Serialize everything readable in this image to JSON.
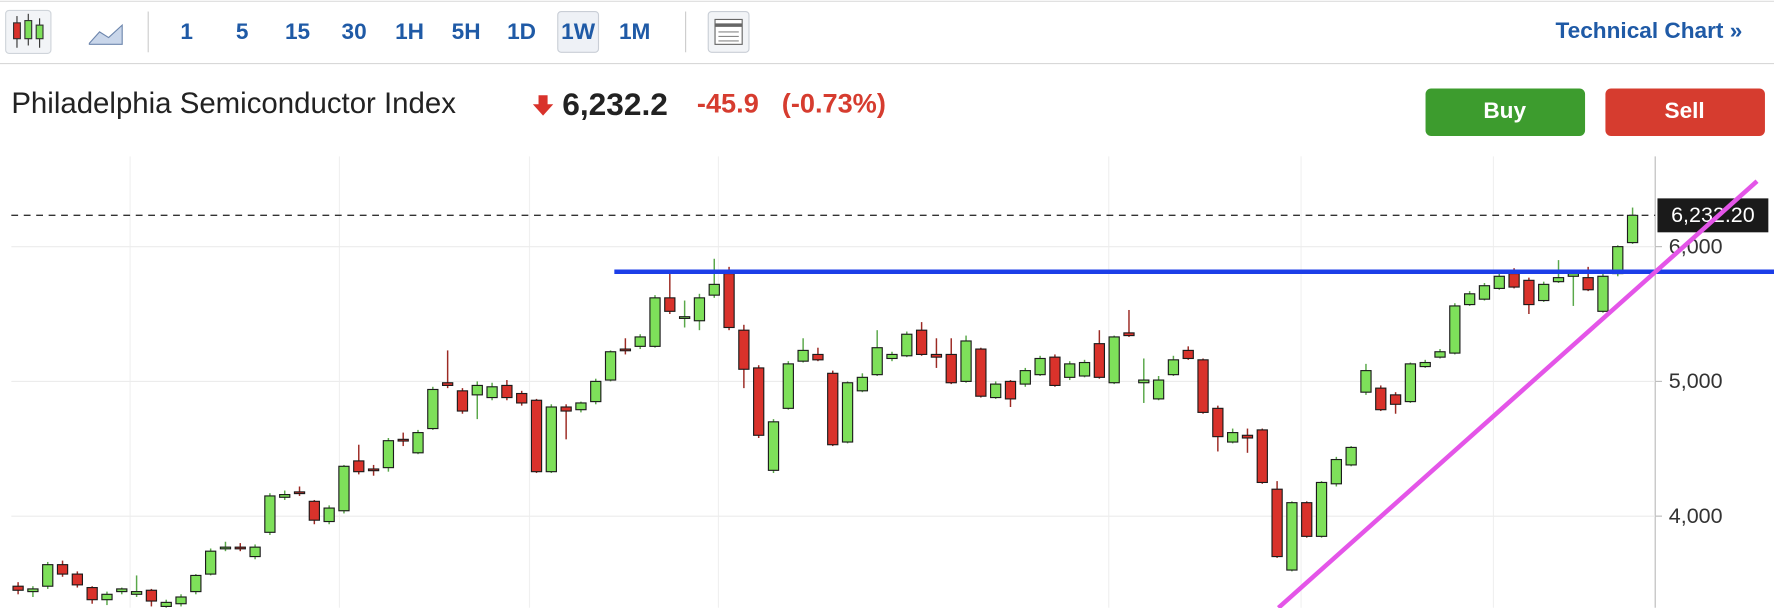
{
  "toolbar": {
    "intervals": [
      "1",
      "5",
      "15",
      "30",
      "1H",
      "5H",
      "1D",
      "1W",
      "1M"
    ],
    "selected": "1W",
    "link": "Technical Chart »"
  },
  "quote": {
    "name": "Philadelphia Semiconductor Index",
    "price": "6,232.2",
    "change": "-45.9",
    "change_percent": "(-0.73%)"
  },
  "buttons": [
    "Buy",
    "Sell"
  ],
  "chart_data": {
    "type": "candlestick",
    "open": [
      3480,
      3440,
      3480,
      3640,
      3570,
      3470,
      3380,
      3440,
      3420,
      3450,
      3330,
      3350,
      3440,
      3570,
      3760,
      3770,
      3700,
      3880,
      4140,
      4180,
      4110,
      3960,
      4040,
      4410,
      4350,
      4360,
      4570,
      4470,
      4650,
      4990,
      4930,
      4900,
      4880,
      4970,
      4910,
      4860,
      4330,
      4810,
      4790,
      4850,
      5010,
      5240,
      5260,
      5260,
      5620,
      5480,
      5450,
      5640,
      5800,
      5380,
      5100,
      4340,
      4800,
      5150,
      5200,
      5060,
      4550,
      4930,
      5050,
      5170,
      5190,
      5380,
      5200,
      5200,
      5000,
      5240,
      4880,
      5000,
      4980,
      5050,
      5180,
      5030,
      5040,
      5280,
      4990,
      5360,
      4990,
      4870,
      5050,
      5230,
      5160,
      4800,
      4550,
      4600,
      4640,
      4200,
      3600,
      4100,
      3850,
      4240,
      4380,
      4920,
      4950,
      4900,
      4850,
      5110,
      5180,
      5210,
      5570,
      5610,
      5690,
      5800,
      5750,
      5600,
      5740,
      5780,
      5770,
      5520,
      5800,
      6030
    ],
    "high": [
      3510,
      3480,
      3660,
      3670,
      3590,
      3480,
      3440,
      3470,
      3560,
      3460,
      3380,
      3420,
      3570,
      3760,
      3810,
      3800,
      3790,
      4170,
      4190,
      4220,
      4120,
      4080,
      4380,
      4530,
      4380,
      4580,
      4620,
      4640,
      4960,
      5230,
      4950,
      5000,
      4990,
      5010,
      4930,
      4870,
      4830,
      4830,
      4850,
      5020,
      5230,
      5320,
      5350,
      5640,
      5800,
      5600,
      5650,
      5910,
      5850,
      5420,
      5120,
      4720,
      5150,
      5320,
      5250,
      5080,
      5000,
      5060,
      5380,
      5220,
      5370,
      5440,
      5320,
      5320,
      5340,
      5250,
      5000,
      5010,
      5100,
      5190,
      5200,
      5150,
      5160,
      5380,
      5340,
      5530,
      5170,
      5040,
      5190,
      5260,
      5170,
      4820,
      4650,
      4650,
      4650,
      4260,
      4110,
      4110,
      4260,
      4440,
      4520,
      5130,
      4970,
      4920,
      5140,
      5160,
      5240,
      5580,
      5670,
      5730,
      5800,
      5840,
      5770,
      5740,
      5900,
      5830,
      5850,
      5800,
      6010,
      6290
    ],
    "low": [
      3420,
      3400,
      3460,
      3550,
      3470,
      3350,
      3340,
      3420,
      3400,
      3330,
      3320,
      3330,
      3420,
      3560,
      3740,
      3740,
      3680,
      3860,
      4120,
      4150,
      3940,
      3940,
      4020,
      4310,
      4300,
      4330,
      4520,
      4460,
      4640,
      4950,
      4760,
      4720,
      4860,
      4860,
      4820,
      4320,
      4320,
      4570,
      4770,
      4830,
      5000,
      5200,
      5240,
      5250,
      5500,
      5400,
      5380,
      5620,
      5380,
      4950,
      4580,
      4320,
      4790,
      5140,
      5150,
      4520,
      4540,
      4920,
      5040,
      5150,
      5180,
      5190,
      5100,
      4980,
      4990,
      4880,
      4870,
      4810,
      4960,
      5040,
      4960,
      5010,
      5030,
      5020,
      4980,
      5330,
      4840,
      4860,
      5040,
      5160,
      4760,
      4480,
      4540,
      4470,
      4240,
      3690,
      3590,
      3840,
      3840,
      4220,
      4370,
      4900,
      4780,
      4760,
      4840,
      5100,
      5170,
      5200,
      5560,
      5600,
      5680,
      5690,
      5500,
      5590,
      5730,
      5560,
      5670,
      5510,
      5780,
      6020
    ],
    "close": [
      3450,
      3460,
      3640,
      3570,
      3490,
      3380,
      3420,
      3460,
      3440,
      3370,
      3360,
      3400,
      3560,
      3740,
      3770,
      3760,
      3770,
      4150,
      4160,
      4170,
      3970,
      4060,
      4370,
      4330,
      4340,
      4560,
      4560,
      4620,
      4940,
      4970,
      4780,
      4970,
      4960,
      4880,
      4840,
      4330,
      4810,
      4780,
      4840,
      5000,
      5220,
      5230,
      5330,
      5620,
      5520,
      5480,
      5620,
      5720,
      5400,
      5090,
      4600,
      4700,
      5130,
      5230,
      5160,
      4530,
      4990,
      5030,
      5250,
      5200,
      5350,
      5200,
      5180,
      4990,
      5300,
      4890,
      4980,
      4870,
      5080,
      5170,
      4970,
      5130,
      5140,
      5030,
      5330,
      5340,
      5010,
      5010,
      5160,
      5170,
      4770,
      4590,
      4620,
      4580,
      4250,
      3700,
      4100,
      3850,
      4250,
      4420,
      4510,
      5080,
      4790,
      4830,
      5130,
      5140,
      5220,
      5560,
      5650,
      5710,
      5780,
      5700,
      5570,
      5720,
      5770,
      5800,
      5680,
      5780,
      6000,
      6232.2
    ],
    "up_color": "#7ee05a",
    "down_color": "#d9322b",
    "ylim": [
      3320,
      6670
    ],
    "yticks": [
      {
        "value": 4000,
        "label": "4,000"
      },
      {
        "value": 5000,
        "label": "5,000"
      },
      {
        "value": 6000,
        "label": "6,000"
      }
    ],
    "grid": true,
    "last_price": {
      "value": 6232.2,
      "label": "6,232.20"
    }
  }
}
